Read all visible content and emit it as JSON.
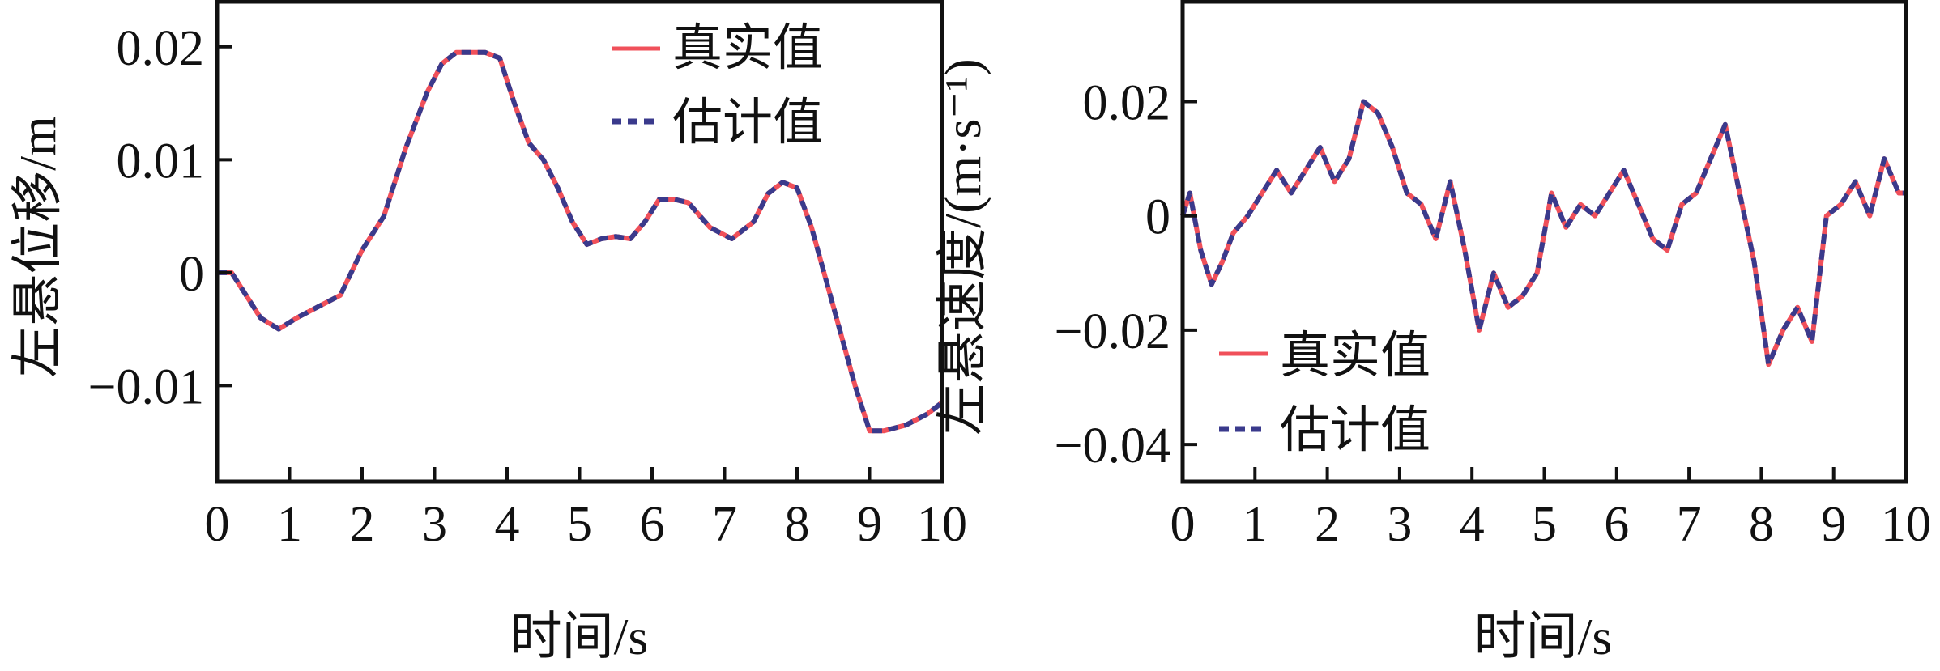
{
  "colors": {
    "true_series": "#f0505a",
    "est_series": "#3a3a8c",
    "axis": "#111111"
  },
  "chart_data": [
    {
      "type": "line",
      "xlabel": "时间/s",
      "ylabel": "左悬位移/m",
      "xlim": [
        0,
        10
      ],
      "ylim": [
        -0.0185,
        0.024
      ],
      "xticks": [
        0,
        1,
        2,
        3,
        4,
        5,
        6,
        7,
        8,
        9,
        10
      ],
      "xtick_labels": [
        "0",
        "1",
        "2",
        "3",
        "4",
        "5",
        "6",
        "7",
        "8",
        "9",
        "10"
      ],
      "yticks": [
        0.02,
        0.01,
        0,
        -0.01
      ],
      "ytick_labels": [
        "0.02",
        "0.01",
        "0",
        "−0.01"
      ],
      "legend_position": "top-right",
      "series": [
        {
          "name": "真实值",
          "style": "solid",
          "color": "#f0505a"
        },
        {
          "name": "估计值",
          "style": "dashed",
          "color": "#3a3a8c"
        }
      ],
      "x": [
        0,
        0.2,
        0.4,
        0.6,
        0.85,
        1.1,
        1.4,
        1.7,
        2.0,
        2.3,
        2.6,
        2.9,
        3.1,
        3.3,
        3.5,
        3.7,
        3.9,
        4.1,
        4.3,
        4.5,
        4.7,
        4.9,
        5.1,
        5.3,
        5.5,
        5.7,
        5.9,
        6.1,
        6.3,
        6.5,
        6.8,
        7.1,
        7.4,
        7.6,
        7.8,
        8.0,
        8.2,
        8.5,
        8.8,
        9.0,
        9.2,
        9.5,
        9.8,
        10.0
      ],
      "y": [
        0.0,
        0.0,
        -0.002,
        -0.004,
        -0.005,
        -0.004,
        -0.003,
        -0.002,
        0.002,
        0.005,
        0.011,
        0.016,
        0.0185,
        0.0195,
        0.0195,
        0.0195,
        0.019,
        0.015,
        0.0115,
        0.01,
        0.0075,
        0.0045,
        0.0025,
        0.003,
        0.0032,
        0.003,
        0.0045,
        0.0065,
        0.0065,
        0.0062,
        0.004,
        0.003,
        0.0045,
        0.007,
        0.008,
        0.0075,
        0.004,
        -0.003,
        -0.01,
        -0.014,
        -0.014,
        -0.0135,
        -0.0125,
        -0.0115
      ]
    },
    {
      "type": "line",
      "xlabel": "时间/s",
      "ylabel": "左悬速度/(m·s⁻¹)",
      "xlim": [
        0,
        10
      ],
      "ylim": [
        -0.0465,
        0.0375
      ],
      "xticks": [
        0,
        1,
        2,
        3,
        4,
        5,
        6,
        7,
        8,
        9,
        10
      ],
      "xtick_labels": [
        "0",
        "1",
        "2",
        "3",
        "4",
        "5",
        "6",
        "7",
        "8",
        "9",
        "10"
      ],
      "yticks": [
        0.02,
        0,
        -0.02,
        -0.04
      ],
      "ytick_labels": [
        "0.02",
        "0",
        "−0.02",
        "−0.04"
      ],
      "legend_position": "bottom-left",
      "series": [
        {
          "name": "真实值",
          "style": "solid",
          "color": "#f0505a"
        },
        {
          "name": "估计值",
          "style": "dashed",
          "color": "#3a3a8c"
        }
      ],
      "x": [
        0,
        0.1,
        0.25,
        0.4,
        0.55,
        0.7,
        0.9,
        1.1,
        1.3,
        1.5,
        1.7,
        1.9,
        2.1,
        2.3,
        2.5,
        2.7,
        2.9,
        3.1,
        3.3,
        3.5,
        3.7,
        3.9,
        4.1,
        4.3,
        4.5,
        4.7,
        4.9,
        5.1,
        5.3,
        5.5,
        5.7,
        5.9,
        6.1,
        6.3,
        6.5,
        6.7,
        6.9,
        7.1,
        7.3,
        7.5,
        7.7,
        7.9,
        8.1,
        8.3,
        8.5,
        8.7,
        8.9,
        9.1,
        9.3,
        9.5,
        9.7,
        9.9,
        10.0
      ],
      "y": [
        0.0,
        0.004,
        -0.006,
        -0.012,
        -0.008,
        -0.003,
        0.0,
        0.004,
        0.008,
        0.004,
        0.008,
        0.012,
        0.006,
        0.01,
        0.02,
        0.018,
        0.012,
        0.004,
        0.002,
        -0.004,
        0.006,
        -0.006,
        -0.02,
        -0.01,
        -0.016,
        -0.014,
        -0.01,
        0.004,
        -0.002,
        0.002,
        0.0,
        0.004,
        0.008,
        0.002,
        -0.004,
        -0.006,
        0.002,
        0.004,
        0.01,
        0.016,
        0.004,
        -0.008,
        -0.026,
        -0.02,
        -0.016,
        -0.022,
        0.0,
        0.002,
        0.006,
        0.0,
        0.01,
        0.004,
        0.004
      ]
    }
  ]
}
